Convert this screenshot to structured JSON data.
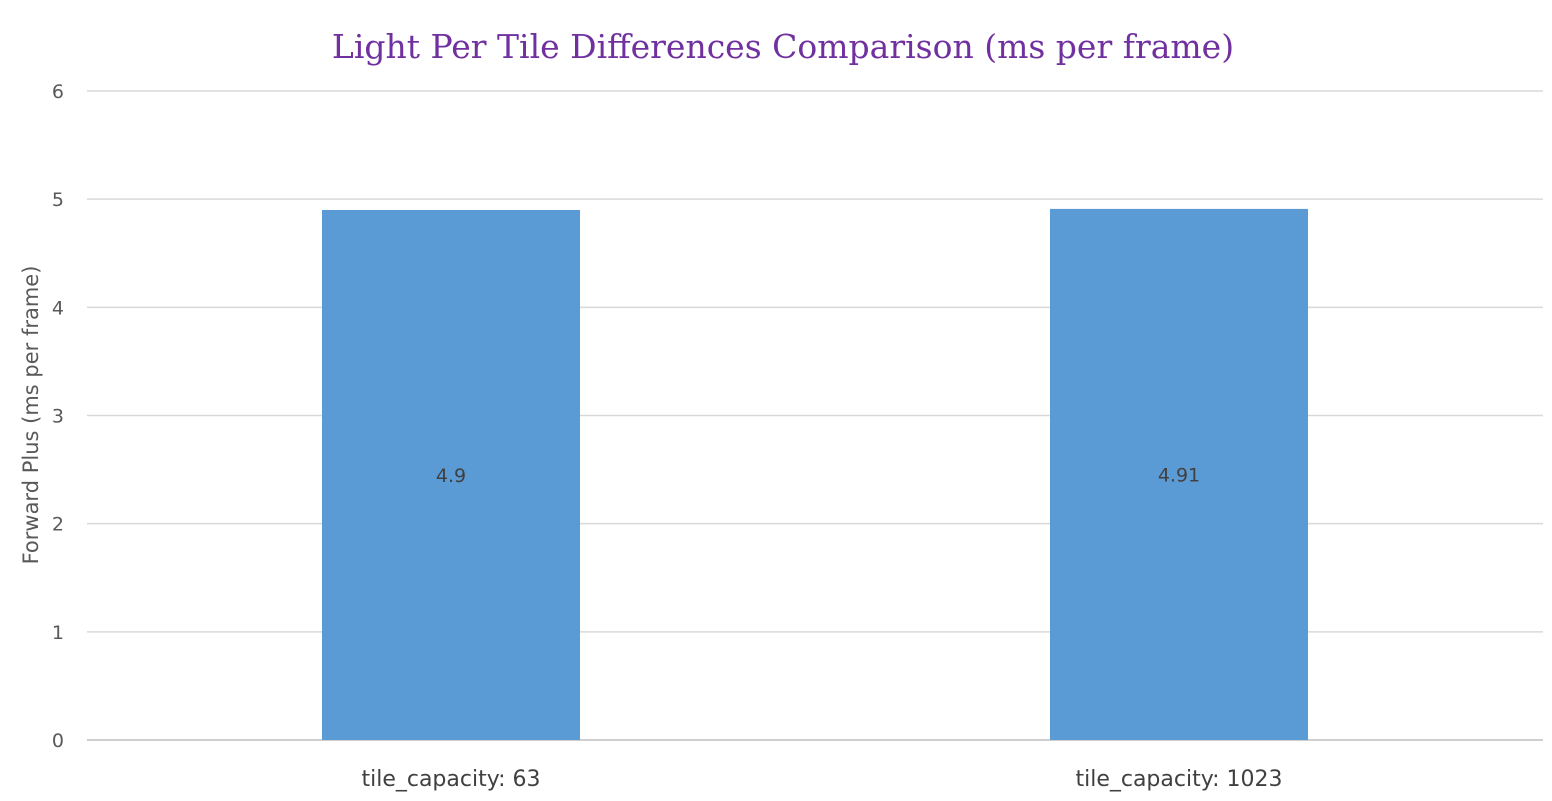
{
  "chart_data": {
    "type": "bar",
    "title": "Light Per Tile Differences Comparison (ms per frame)",
    "xlabel": "",
    "ylabel": "Forward Plus (ms per frame)",
    "categories": [
      "tile_capacity: 63",
      "tile_capacity: 1023"
    ],
    "values": [
      4.9,
      4.91
    ],
    "data_labels": [
      "4.9",
      "4.91"
    ],
    "ylim": [
      0,
      6
    ],
    "y_ticks": [
      0,
      1,
      2,
      3,
      4,
      5,
      6
    ],
    "y_tick_labels": [
      "0",
      "1",
      "2",
      "3",
      "4",
      "5",
      "6"
    ],
    "grid": true,
    "legend": "none",
    "colors": {
      "bar": "#5b9bd5",
      "title": "#7030a0"
    }
  }
}
